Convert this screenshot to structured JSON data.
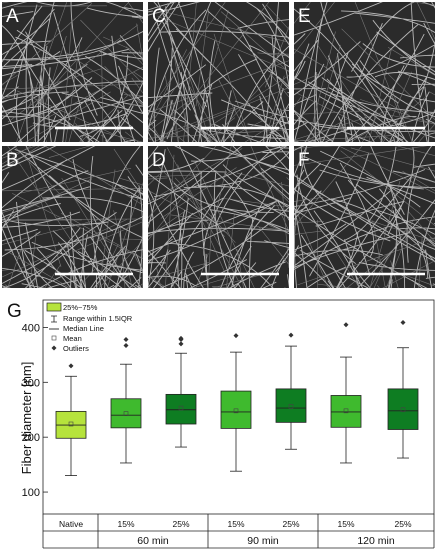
{
  "panels": [
    {
      "label": "A",
      "seed": 11
    },
    {
      "label": "C",
      "seed": 23
    },
    {
      "label": "E",
      "seed": 37
    },
    {
      "label": "B",
      "seed": 41
    },
    {
      "label": "D",
      "seed": 53
    },
    {
      "label": "F",
      "seed": 67
    }
  ],
  "chart_data": {
    "type": "box",
    "panel_label": "G",
    "ylabel": "Fiber diameter [nm]",
    "ylim": [
      60,
      450
    ],
    "yticks": [
      100,
      200,
      300,
      400
    ],
    "legend": {
      "position": "top-left",
      "box_label": "25%~75%",
      "whisker_label": "Range within 1.5IQR",
      "median_label": "Median Line",
      "mean_label": "Mean",
      "outlier_label": "Outliers"
    },
    "groups": [
      {
        "label": "Native",
        "subgroup": "",
        "color": "#b6e33c",
        "min": 130,
        "q1": 198,
        "median": 222,
        "mean": 224,
        "q3": 247,
        "max": 311,
        "outliers": [
          330
        ]
      },
      {
        "label": "15%",
        "subgroup": "60 min",
        "color": "#3fba2e",
        "min": 153,
        "q1": 217,
        "median": 240,
        "mean": 243,
        "q3": 270,
        "max": 333,
        "outliers": [
          367,
          378
        ]
      },
      {
        "label": "25%",
        "subgroup": "60 min",
        "color": "#0e7d22",
        "min": 182,
        "q1": 224,
        "median": 250,
        "mean": 253,
        "q3": 278,
        "max": 353,
        "outliers": [
          370,
          378,
          380
        ]
      },
      {
        "label": "15%",
        "subgroup": "90 min",
        "color": "#3fba2e",
        "min": 138,
        "q1": 216,
        "median": 246,
        "mean": 248,
        "q3": 284,
        "max": 355,
        "outliers": [
          385
        ]
      },
      {
        "label": "25%",
        "subgroup": "90 min",
        "color": "#0e7d22",
        "min": 178,
        "q1": 227,
        "median": 253,
        "mean": 256,
        "q3": 288,
        "max": 366,
        "outliers": [
          386
        ]
      },
      {
        "label": "15%",
        "subgroup": "120 min",
        "color": "#3fba2e",
        "min": 153,
        "q1": 218,
        "median": 246,
        "mean": 248,
        "q3": 276,
        "max": 346,
        "outliers": [
          405
        ]
      },
      {
        "label": "25%",
        "subgroup": "120 min",
        "color": "#0e7d22",
        "min": 162,
        "q1": 214,
        "median": 248,
        "mean": 250,
        "q3": 288,
        "max": 363,
        "outliers": [
          409
        ]
      }
    ],
    "subgroups": [
      "60 min",
      "90 min",
      "120 min"
    ]
  }
}
